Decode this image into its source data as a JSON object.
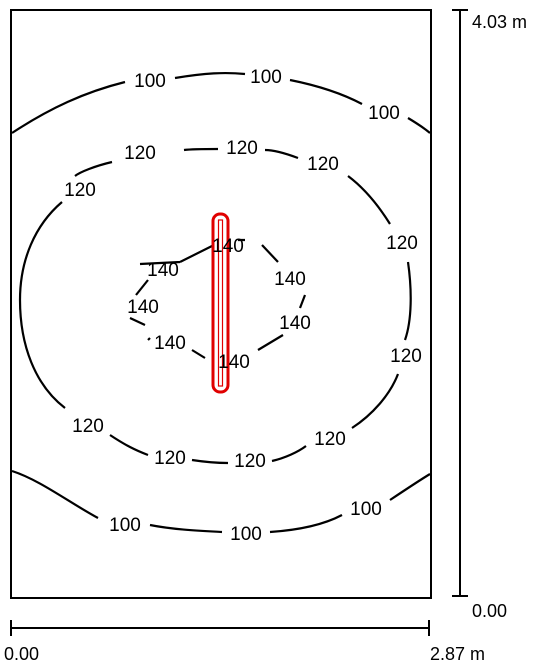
{
  "room": {
    "width_label": "2.87 m",
    "length_label": "4.03 m",
    "origin_x_label": "0.00",
    "origin_y_label": "0.00"
  },
  "contour_levels": [
    "100",
    "120",
    "140"
  ],
  "luminaire": {
    "color": "#e00000"
  }
}
